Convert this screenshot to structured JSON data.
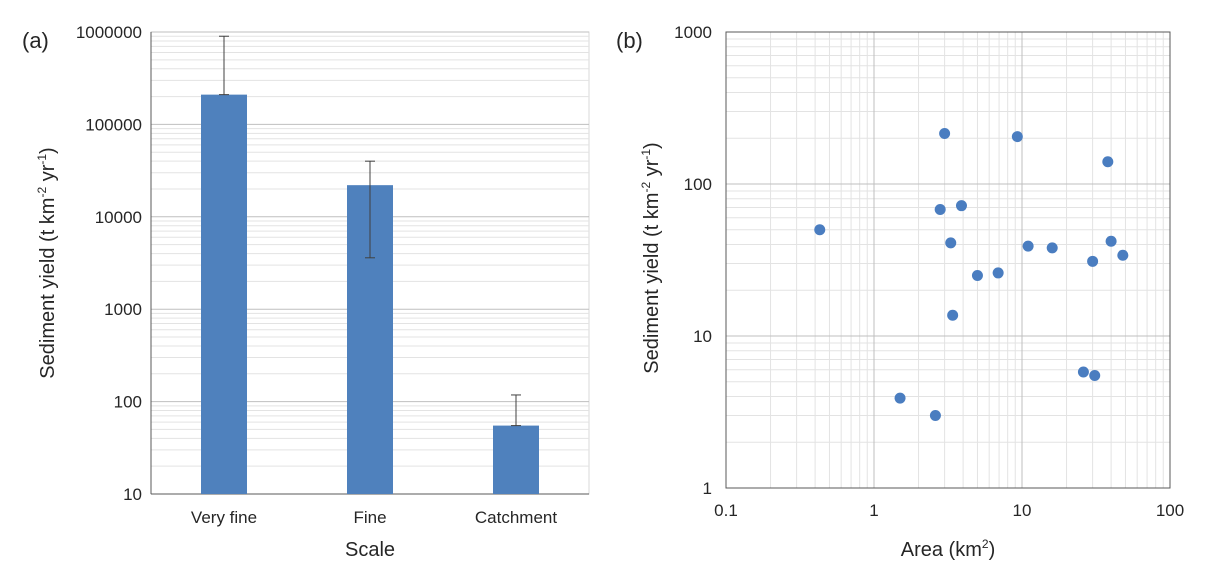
{
  "colors": {
    "bar": "#4f81bd",
    "point": "#4a7dc0",
    "grid_major": "#bfbfbf",
    "grid_minor": "#e3e3e3",
    "axis": "#595959"
  },
  "chart_data": [
    {
      "panel_label": "(a)",
      "type": "bar",
      "xlabel": "Scale",
      "ylabel": "Sediment yield (t km",
      "ylabel_sup1": "-2",
      "ylabel_mid": " yr",
      "ylabel_sup2": "-1",
      "ylabel_end": ")",
      "yscale": "log",
      "ylim": [
        10,
        1000000
      ],
      "yticks": [
        "10",
        "100",
        "1000",
        "10000",
        "100000",
        "1000000"
      ],
      "categories": [
        "Very fine",
        "Fine",
        "Catchment"
      ],
      "values": [
        210000,
        22000,
        55
      ],
      "error_low": [
        210000,
        3600,
        55
      ],
      "error_high": [
        900000,
        40000,
        118
      ],
      "grid": "minor horizontal"
    },
    {
      "panel_label": "(b)",
      "type": "scatter",
      "xlabel": "Area (km",
      "xlabel_sup": "2",
      "xlabel_end": ")",
      "ylabel": "Sediment yield (t km",
      "ylabel_sup1": "-2",
      "ylabel_mid": " yr",
      "ylabel_sup2": "-1",
      "ylabel_end": ")",
      "xscale": "log",
      "yscale": "log",
      "xlim": [
        0.1,
        100
      ],
      "ylim": [
        1,
        1000
      ],
      "xticks": [
        "0.1",
        "1",
        "10",
        "100"
      ],
      "yticks": [
        "1",
        "10",
        "100",
        "1000"
      ],
      "points": [
        {
          "x": 0.43,
          "y": 50
        },
        {
          "x": 1.5,
          "y": 3.9
        },
        {
          "x": 2.6,
          "y": 3.0
        },
        {
          "x": 2.8,
          "y": 68
        },
        {
          "x": 3.0,
          "y": 215
        },
        {
          "x": 3.3,
          "y": 41
        },
        {
          "x": 3.4,
          "y": 13.7
        },
        {
          "x": 3.9,
          "y": 72
        },
        {
          "x": 5.0,
          "y": 25
        },
        {
          "x": 6.9,
          "y": 26
        },
        {
          "x": 9.3,
          "y": 205
        },
        {
          "x": 11.0,
          "y": 39
        },
        {
          "x": 16.0,
          "y": 38
        },
        {
          "x": 26.0,
          "y": 5.8
        },
        {
          "x": 30.0,
          "y": 31
        },
        {
          "x": 31.0,
          "y": 5.5
        },
        {
          "x": 38.0,
          "y": 140
        },
        {
          "x": 40.0,
          "y": 42
        },
        {
          "x": 48.0,
          "y": 34
        }
      ],
      "grid": "major and minor"
    }
  ]
}
